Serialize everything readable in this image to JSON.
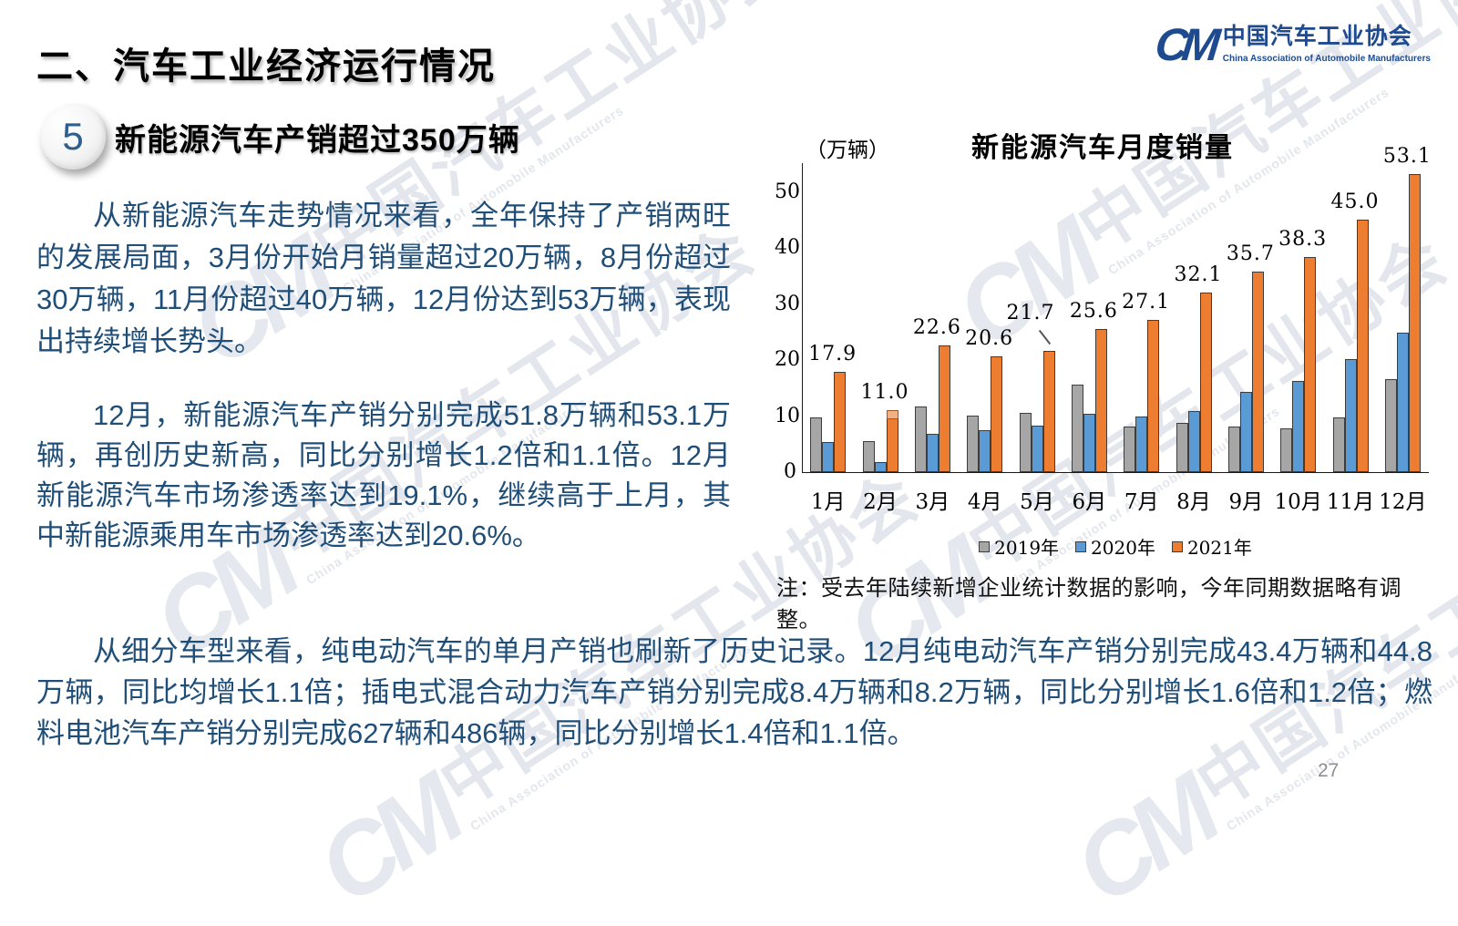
{
  "page": {
    "title": "二、汽车工业经济运行情况",
    "page_number": "27"
  },
  "logo": {
    "mark": "CM",
    "name_cn": "中国汽车工业协会",
    "name_en": "China Association of Automobile Manufacturers"
  },
  "section": {
    "number": "5",
    "heading": "新能源汽车产销超过350万辆"
  },
  "paragraphs": {
    "p1": "从新能源汽车走势情况来看，全年保持了产销两旺的发展局面，3月份开始月销量超过20万辆，8月份超过30万辆，11月份超过40万辆，12月份达到53万辆，表现出持续增长势头。",
    "p2": "12月，新能源汽车产销分别完成51.8万辆和53.1万辆，再创历史新高，同比分别增长1.2倍和1.1倍。12月新能源汽车市场渗透率达到19.1%，继续高于上月，其中新能源乘用车市场渗透率达到20.6%。",
    "p3": "从细分车型来看，纯电动汽车的单月产销也刷新了历史记录。12月纯电动汽车产销分别完成43.4万辆和44.8万辆，同比均增长1.1倍；插电式混合动力汽车产销分别完成8.4万辆和8.2万辆，同比分别增长1.6倍和1.2倍；燃料电池汽车产销分别完成627辆和486辆，同比分别增长1.4倍和1.1倍。"
  },
  "watermark": {
    "mark": "CM",
    "text_cn": "中国汽车工业协会",
    "text_en": "China Association of Automobile Manufacturers"
  },
  "chart_data": {
    "type": "bar",
    "title": "新能源汽车月度销量",
    "unit_label": "（万辆）",
    "categories": [
      "1月",
      "2月",
      "3月",
      "4月",
      "5月",
      "6月",
      "7月",
      "8月",
      "9月",
      "10月",
      "11月",
      "12月"
    ],
    "series": [
      {
        "name": "2019年",
        "color": "#A6A6A6",
        "values": [
          9.8,
          5.5,
          11.7,
          10.1,
          10.6,
          15.6,
          8.1,
          8.7,
          8.1,
          7.8,
          9.8,
          16.6
        ]
      },
      {
        "name": "2020年",
        "color": "#5B9BD5",
        "values": [
          5.4,
          1.8,
          6.8,
          7.4,
          8.3,
          10.4,
          9.9,
          10.9,
          14.3,
          16.2,
          20.2,
          24.9
        ]
      },
      {
        "name": "2021年",
        "color": "#ED7D31",
        "data_labels": true,
        "values": [
          17.9,
          11.0,
          22.6,
          20.6,
          21.7,
          25.6,
          27.1,
          32.1,
          35.7,
          38.3,
          45.0,
          53.1
        ]
      }
    ],
    "xlabel": "",
    "ylabel": "",
    "ylim": [
      0,
      55
    ],
    "yticks": [
      0,
      10,
      20,
      30,
      40,
      50
    ],
    "grid": false,
    "legend_position": "bottom",
    "label_leader_line_category": "5月",
    "bar_caps": [
      {
        "category": "2月",
        "series": "2021年",
        "color": "#F4B183",
        "height_units": 1.5
      }
    ],
    "note": "注：受去年陆续新增企业统计数据的影响，今年同期数据略有调整。"
  }
}
